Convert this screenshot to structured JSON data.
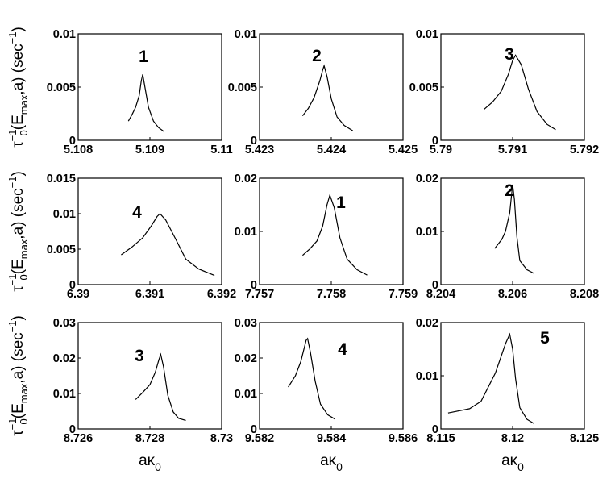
{
  "chart_data": {
    "type": "line",
    "ylabel": {
      "main": "τ",
      "sup": "−1",
      "sub0": "0",
      "open": "(E",
      "sub": "max",
      "close": ",a)",
      "unit": "(sec",
      "unit_sup": "−1",
      "unit_close": ")"
    },
    "xlabel": {
      "main": "aκ",
      "sub": "0"
    },
    "panels": [
      {
        "label": "1",
        "xlim": [
          5.108,
          5.11
        ],
        "xticks": [
          "5.108",
          "5.109",
          "5.11"
        ],
        "ylim": [
          0,
          0.01
        ],
        "yticks": [
          "0",
          "0.005",
          "0.01"
        ],
        "x": [
          5.1087,
          5.10875,
          5.1088,
          5.10885,
          5.10888,
          5.1089,
          5.10893,
          5.10898,
          5.10905,
          5.10912,
          5.1092
        ],
        "y": [
          0.0018,
          0.0024,
          0.0031,
          0.0042,
          0.0056,
          0.0062,
          0.005,
          0.0031,
          0.0018,
          0.0012,
          0.0008
        ]
      },
      {
        "label": "2",
        "xlim": [
          5.423,
          5.425
        ],
        "xticks": [
          "5.423",
          "5.424",
          "5.425"
        ],
        "ylim": [
          0,
          0.01
        ],
        "yticks": [
          "0",
          "0.005",
          "0.01"
        ],
        "x": [
          5.4236,
          5.42368,
          5.42376,
          5.42384,
          5.42388,
          5.4239,
          5.42394,
          5.424,
          5.42408,
          5.42418,
          5.4243
        ],
        "y": [
          0.0023,
          0.003,
          0.004,
          0.0056,
          0.0066,
          0.007,
          0.006,
          0.0039,
          0.0022,
          0.0014,
          0.0009
        ]
      },
      {
        "label": "3",
        "xlim": [
          5.79,
          5.792
        ],
        "xticks": [
          "5.79",
          "5.791",
          "5.792"
        ],
        "ylim": [
          0,
          0.01
        ],
        "yticks": [
          "0",
          "0.005",
          "0.01"
        ],
        "x": [
          5.7906,
          5.79072,
          5.79084,
          5.79094,
          5.791,
          5.79104,
          5.79112,
          5.79122,
          5.79134,
          5.79148,
          5.7916
        ],
        "y": [
          0.0029,
          0.0036,
          0.0046,
          0.0062,
          0.0075,
          0.008,
          0.0071,
          0.0048,
          0.0027,
          0.0015,
          0.001
        ]
      },
      {
        "label": "4",
        "xlim": [
          6.39,
          6.392
        ],
        "xticks": [
          "6.39",
          "6.391",
          "6.392"
        ],
        "ylim": [
          0,
          0.015
        ],
        "yticks": [
          "0",
          "0.005",
          "0.01",
          "0.015"
        ],
        "x": [
          6.3906,
          6.39075,
          6.3909,
          6.39102,
          6.3911,
          6.39114,
          6.39122,
          6.39135,
          6.3915,
          6.39168,
          6.3919
        ],
        "y": [
          0.0042,
          0.0053,
          0.0066,
          0.0083,
          0.0096,
          0.01,
          0.0091,
          0.0066,
          0.0036,
          0.0022,
          0.0013
        ]
      },
      {
        "label": "1",
        "xlim": [
          7.757,
          7.759
        ],
        "xticks": [
          "7.757",
          "7.758",
          "7.759"
        ],
        "ylim": [
          0,
          0.02
        ],
        "yticks": [
          "0",
          "0.01",
          "0.02"
        ],
        "x": [
          7.7576,
          7.7577,
          7.7578,
          7.75788,
          7.75794,
          7.75798,
          7.75804,
          7.75812,
          7.75822,
          7.75836,
          7.7585
        ],
        "y": [
          0.0055,
          0.0067,
          0.0082,
          0.011,
          0.015,
          0.0168,
          0.0145,
          0.0088,
          0.0048,
          0.0028,
          0.0018
        ]
      },
      {
        "label": "2",
        "xlim": [
          8.204,
          8.208
        ],
        "xticks": [
          "8.204",
          "8.206",
          "8.208"
        ],
        "ylim": [
          0,
          0.02
        ],
        "yticks": [
          "0",
          "0.01",
          "0.02"
        ],
        "x": [
          8.2055,
          8.2057,
          8.2058,
          8.20592,
          8.20598,
          8.206,
          8.20605,
          8.20612,
          8.2062,
          8.2064,
          8.2066
        ],
        "y": [
          0.0068,
          0.0085,
          0.01,
          0.0135,
          0.0175,
          0.0188,
          0.016,
          0.009,
          0.0045,
          0.0028,
          0.0021
        ]
      },
      {
        "label": "3",
        "xlim": [
          8.726,
          8.73
        ],
        "xticks": [
          "8.726",
          "8.728",
          "8.73"
        ],
        "ylim": [
          0,
          0.03
        ],
        "yticks": [
          "0",
          "0.01",
          "0.02",
          "0.03"
        ],
        "x": [
          8.7276,
          8.7278,
          8.728,
          8.72815,
          8.72825,
          8.7283,
          8.72838,
          8.7285,
          8.72865,
          8.7288,
          8.729
        ],
        "y": [
          0.0083,
          0.0103,
          0.0125,
          0.016,
          0.0195,
          0.021,
          0.0175,
          0.0095,
          0.0048,
          0.003,
          0.0024
        ]
      },
      {
        "label": "4",
        "xlim": [
          9.582,
          9.586
        ],
        "xticks": [
          "9.582",
          "9.584",
          "9.586"
        ],
        "ylim": [
          0,
          0.03
        ],
        "yticks": [
          "0",
          "0.01",
          "0.02",
          "0.03"
        ],
        "x": [
          9.5828,
          9.583,
          9.58315,
          9.58325,
          9.5833,
          9.58334,
          9.58342,
          9.58355,
          9.5837,
          9.5839,
          9.5841
        ],
        "y": [
          0.0118,
          0.015,
          0.019,
          0.023,
          0.025,
          0.0255,
          0.0215,
          0.0135,
          0.007,
          0.004,
          0.0028
        ]
      },
      {
        "label": "5",
        "xlim": [
          8.115,
          8.125
        ],
        "xticks": [
          "8.115",
          "8.12",
          "8.125"
        ],
        "ylim": [
          0,
          0.02
        ],
        "yticks": [
          "0",
          "0.01",
          "0.02"
        ],
        "x": [
          8.1155,
          8.117,
          8.1178,
          8.1188,
          8.1195,
          8.1198,
          8.12,
          8.1202,
          8.1205,
          8.121,
          8.1215
        ],
        "y": [
          0.003,
          0.0038,
          0.0052,
          0.0105,
          0.016,
          0.0178,
          0.015,
          0.0095,
          0.004,
          0.0018,
          0.001
        ]
      }
    ]
  }
}
